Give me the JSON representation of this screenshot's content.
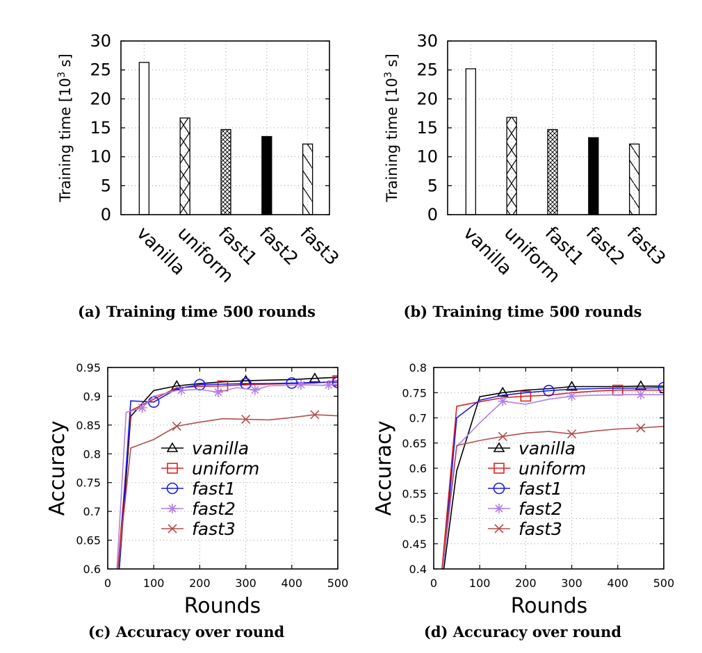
{
  "chart_data": [
    {
      "panel": "a",
      "type": "bar",
      "caption": "(a) Training time 500 rounds",
      "ylabel": "Training time [10³ s]",
      "ylabel_main": "Training time [10",
      "ylabel_sup": "3",
      "ylabel_tail": " s]",
      "ylim": [
        0,
        30
      ],
      "yticks": [
        0,
        5,
        10,
        15,
        20,
        25,
        30
      ],
      "grid": true,
      "categories": [
        "vanilla",
        "uniform",
        "fast1",
        "fast2",
        "fast3"
      ],
      "values": [
        26.3,
        16.7,
        14.7,
        13.5,
        12.2
      ],
      "fills": [
        "none",
        "diag-cross",
        "dense-cross",
        "solid",
        "back-diag"
      ]
    },
    {
      "panel": "b",
      "type": "bar",
      "caption": "(b) Training time 500 rounds",
      "ylabel": "Training time [10³ s]",
      "ylabel_main": "Training time [10",
      "ylabel_sup": "3",
      "ylabel_tail": " s]",
      "ylim": [
        0,
        30
      ],
      "yticks": [
        0,
        5,
        10,
        15,
        20,
        25,
        30
      ],
      "grid": true,
      "categories": [
        "vanilla",
        "uniform",
        "fast1",
        "fast2",
        "fast3"
      ],
      "values": [
        25.2,
        16.8,
        14.7,
        13.3,
        12.2
      ],
      "fills": [
        "none",
        "diag-cross",
        "dense-cross",
        "solid",
        "back-diag"
      ]
    },
    {
      "panel": "c",
      "type": "line",
      "caption": "(c) Accuracy over round",
      "xlabel": "Rounds",
      "ylabel": "Accuracy",
      "xlim": [
        0,
        500
      ],
      "ylim": [
        0.6,
        0.95
      ],
      "xticks": [
        0,
        100,
        200,
        300,
        400,
        500
      ],
      "yticks": [
        0.6,
        0.65,
        0.7,
        0.75,
        0.8,
        0.85,
        0.9,
        0.95
      ],
      "ytick_labels": [
        "0.6",
        "0.65",
        "0.7",
        "0.75",
        "0.8",
        "0.85",
        "0.9",
        "0.95"
      ],
      "grid": true,
      "legend_position": "bottom-center",
      "series": [
        {
          "name": "vanilla",
          "color": "#000000",
          "marker": "triangle",
          "x": [
            25,
            50,
            100,
            150,
            200,
            250,
            300,
            350,
            400,
            450,
            500
          ],
          "y": [
            0.6,
            0.865,
            0.91,
            0.918,
            0.922,
            0.925,
            0.927,
            0.928,
            0.929,
            0.931,
            0.933
          ],
          "marker_x": [
            150,
            300,
            450
          ]
        },
        {
          "name": "uniform",
          "color": "#e02020",
          "marker": "square",
          "x": [
            22,
            50,
            100,
            150,
            200,
            250,
            300,
            350,
            400,
            450,
            500
          ],
          "y": [
            0.6,
            0.875,
            0.895,
            0.915,
            0.917,
            0.918,
            0.92,
            0.921,
            0.922,
            0.923,
            0.927
          ],
          "marker_x": [
            250,
            500
          ]
        },
        {
          "name": "fast1",
          "color": "#1a1ae6",
          "marker": "circle",
          "x": [
            25,
            50,
            100,
            150,
            200,
            250,
            300,
            350,
            400,
            450,
            500
          ],
          "y": [
            0.6,
            0.892,
            0.89,
            0.913,
            0.92,
            0.921,
            0.922,
            0.922,
            0.923,
            0.924,
            0.924
          ],
          "marker_x": [
            100,
            200,
            300,
            400,
            500
          ]
        },
        {
          "name": "fast2",
          "color": "#b07ee8",
          "marker": "star",
          "x": [
            20,
            40,
            75,
            100,
            150,
            200,
            240,
            280,
            320,
            350,
            420,
            470,
            500
          ],
          "y": [
            0.6,
            0.872,
            0.88,
            0.9,
            0.91,
            0.912,
            0.907,
            0.915,
            0.911,
            0.918,
            0.92,
            0.919,
            0.921
          ],
          "marker_x": [
            75,
            160,
            240,
            320,
            420,
            480
          ]
        },
        {
          "name": "fast3",
          "color": "#b34d4d",
          "marker": "x",
          "x": [
            22,
            50,
            100,
            150,
            200,
            250,
            300,
            350,
            400,
            450,
            500
          ],
          "y": [
            0.6,
            0.81,
            0.825,
            0.848,
            0.855,
            0.861,
            0.86,
            0.859,
            0.863,
            0.868,
            0.866
          ],
          "marker_x": [
            150,
            300,
            450
          ]
        }
      ]
    },
    {
      "panel": "d",
      "type": "line",
      "caption": "(d) Accuracy over round",
      "xlabel": "Rounds",
      "ylabel": "Accuracy",
      "xlim": [
        0,
        500
      ],
      "ylim": [
        0.4,
        0.8
      ],
      "xticks": [
        0,
        100,
        200,
        300,
        400,
        500
      ],
      "yticks": [
        0.4,
        0.45,
        0.5,
        0.55,
        0.6,
        0.65,
        0.7,
        0.75,
        0.8
      ],
      "ytick_labels": [
        "0.4",
        "0.45",
        "0.5",
        "0.55",
        "0.6",
        "0.65",
        "0.7",
        "0.75",
        "0.8"
      ],
      "grid": true,
      "legend_position": "bottom-center",
      "series": [
        {
          "name": "vanilla",
          "color": "#000000",
          "marker": "triangle",
          "x": [
            22,
            50,
            100,
            150,
            200,
            250,
            300,
            350,
            400,
            450,
            500
          ],
          "y": [
            0.4,
            0.595,
            0.742,
            0.75,
            0.755,
            0.758,
            0.762,
            0.762,
            0.762,
            0.763,
            0.763
          ],
          "marker_x": [
            150,
            300,
            450
          ]
        },
        {
          "name": "uniform",
          "color": "#e02020",
          "marker": "square",
          "x": [
            18,
            50,
            100,
            150,
            200,
            250,
            300,
            350,
            400,
            450,
            500
          ],
          "y": [
            0.4,
            0.723,
            0.732,
            0.74,
            0.743,
            0.745,
            0.75,
            0.753,
            0.755,
            0.755,
            0.755
          ],
          "marker_x": [
            200,
            400
          ]
        },
        {
          "name": "fast1",
          "color": "#1a1ae6",
          "marker": "circle",
          "x": [
            20,
            50,
            100,
            150,
            200,
            250,
            300,
            350,
            400,
            450,
            500
          ],
          "y": [
            0.4,
            0.7,
            0.735,
            0.745,
            0.75,
            0.754,
            0.757,
            0.758,
            0.759,
            0.759,
            0.76
          ],
          "marker_x": [
            250,
            500
          ]
        },
        {
          "name": "fast2",
          "color": "#b07ee8",
          "marker": "star",
          "x": [
            20,
            50,
            100,
            150,
            200,
            250,
            300,
            350,
            400,
            450,
            500
          ],
          "y": [
            0.4,
            0.643,
            0.69,
            0.733,
            0.727,
            0.737,
            0.743,
            0.745,
            0.746,
            0.746,
            0.746
          ],
          "marker_x": [
            150,
            300,
            450
          ]
        },
        {
          "name": "fast3",
          "color": "#b34d4d",
          "marker": "x",
          "x": [
            18,
            50,
            100,
            150,
            200,
            250,
            300,
            350,
            400,
            450,
            500
          ],
          "y": [
            0.4,
            0.645,
            0.655,
            0.663,
            0.67,
            0.673,
            0.668,
            0.674,
            0.678,
            0.68,
            0.683
          ],
          "marker_x": [
            150,
            300,
            450
          ]
        }
      ]
    }
  ]
}
